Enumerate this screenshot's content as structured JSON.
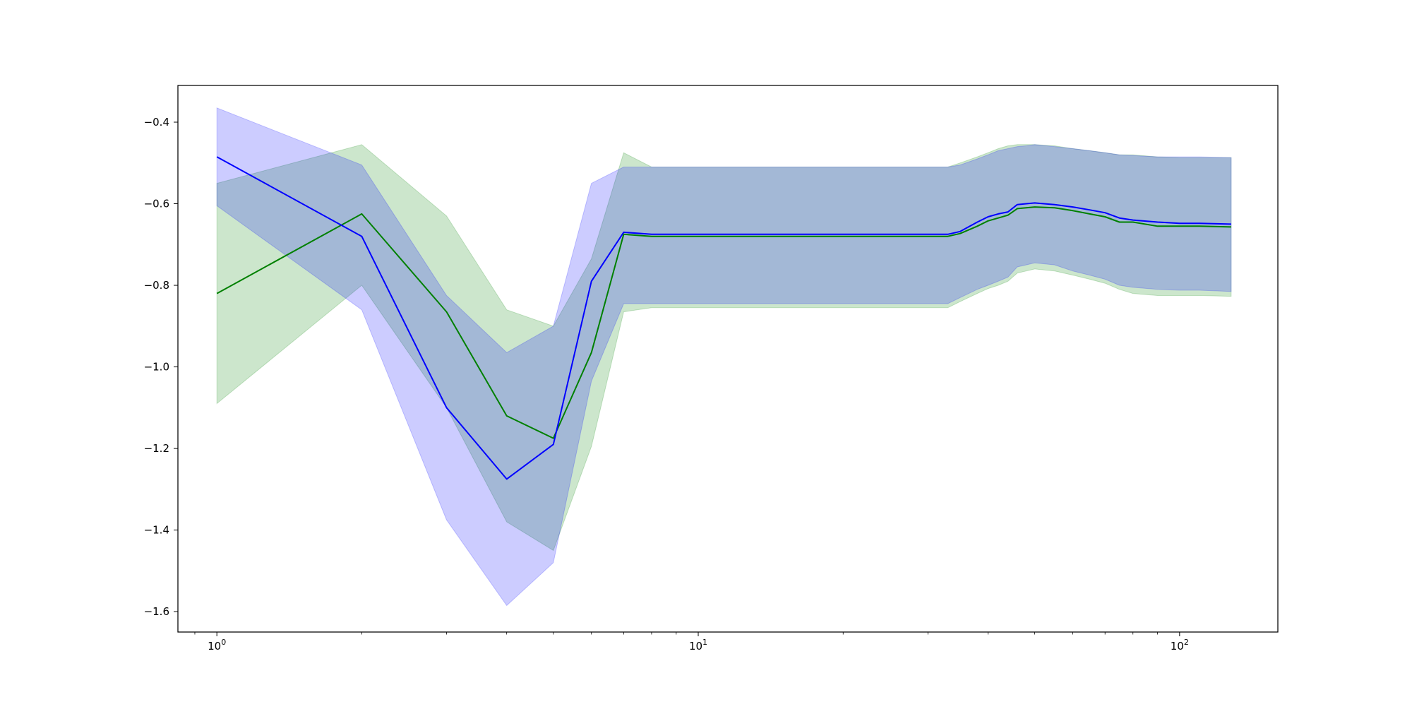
{
  "chart_data": {
    "type": "line",
    "x_scale": "log",
    "xlim": [
      0.83,
      160
    ],
    "ylim": [
      -1.65,
      -0.31
    ],
    "grid": false,
    "legend": "none",
    "title": "",
    "xlabel": "",
    "ylabel": "",
    "x_ticks": [
      {
        "value": 1,
        "label": "10",
        "exp": "0"
      },
      {
        "value": 10,
        "label": "10",
        "exp": "1"
      },
      {
        "value": 100,
        "label": "10",
        "exp": "2"
      }
    ],
    "y_ticks": [
      {
        "value": -0.4,
        "label": "−0.4"
      },
      {
        "value": -0.6,
        "label": "−0.6"
      },
      {
        "value": -0.8,
        "label": "−0.8"
      },
      {
        "value": -1.0,
        "label": "−1.0"
      },
      {
        "value": -1.2,
        "label": "−1.2"
      },
      {
        "value": -1.4,
        "label": "−1.4"
      },
      {
        "value": -1.6,
        "label": "−1.6"
      }
    ],
    "series": [
      {
        "color": "#008000",
        "band_color": "#008000",
        "band_opacity": 0.2,
        "x": [
          1,
          2,
          3,
          4,
          5,
          6,
          7,
          8,
          20,
          33,
          35,
          38,
          40,
          42,
          44,
          46,
          48,
          50,
          55,
          60,
          65,
          70,
          75,
          80,
          90,
          100,
          110,
          128
        ],
        "mean": [
          -0.82,
          -0.625,
          -0.865,
          -1.12,
          -1.175,
          -0.965,
          -0.675,
          -0.68,
          -0.68,
          -0.68,
          -0.673,
          -0.655,
          -0.642,
          -0.635,
          -0.628,
          -0.612,
          -0.61,
          -0.608,
          -0.61,
          -0.617,
          -0.625,
          -0.632,
          -0.645,
          -0.645,
          -0.655,
          -0.655,
          -0.655,
          -0.657
        ],
        "upper": [
          -0.55,
          -0.455,
          -0.63,
          -0.86,
          -0.9,
          -0.735,
          -0.475,
          -0.51,
          -0.51,
          -0.51,
          -0.5,
          -0.485,
          -0.475,
          -0.465,
          -0.458,
          -0.455,
          -0.455,
          -0.455,
          -0.458,
          -0.465,
          -0.47,
          -0.475,
          -0.48,
          -0.48,
          -0.485,
          -0.487,
          -0.487,
          -0.487
        ],
        "lower": [
          -1.09,
          -0.8,
          -1.1,
          -1.38,
          -1.45,
          -1.195,
          -0.865,
          -0.855,
          -0.855,
          -0.855,
          -0.84,
          -0.82,
          -0.808,
          -0.8,
          -0.79,
          -0.77,
          -0.765,
          -0.76,
          -0.765,
          -0.775,
          -0.785,
          -0.795,
          -0.81,
          -0.82,
          -0.825,
          -0.825,
          -0.825,
          -0.827
        ]
      },
      {
        "color": "#0000ff",
        "band_color": "#0000ff",
        "band_opacity": 0.2,
        "x": [
          1,
          2,
          3,
          4,
          5,
          6,
          7,
          8,
          20,
          33,
          35,
          38,
          40,
          42,
          44,
          46,
          48,
          50,
          55,
          60,
          65,
          70,
          75,
          80,
          90,
          100,
          110,
          128
        ],
        "mean": [
          -0.485,
          -0.68,
          -1.1,
          -1.275,
          -1.19,
          -0.79,
          -0.67,
          -0.675,
          -0.675,
          -0.675,
          -0.668,
          -0.645,
          -0.632,
          -0.625,
          -0.62,
          -0.602,
          -0.6,
          -0.598,
          -0.602,
          -0.608,
          -0.615,
          -0.622,
          -0.635,
          -0.64,
          -0.645,
          -0.648,
          -0.648,
          -0.65
        ],
        "upper": [
          -0.365,
          -0.505,
          -0.825,
          -0.965,
          -0.9,
          -0.55,
          -0.51,
          -0.51,
          -0.51,
          -0.51,
          -0.505,
          -0.49,
          -0.48,
          -0.47,
          -0.465,
          -0.46,
          -0.458,
          -0.455,
          -0.46,
          -0.465,
          -0.47,
          -0.475,
          -0.48,
          -0.482,
          -0.485,
          -0.485,
          -0.485,
          -0.487
        ],
        "lower": [
          -0.605,
          -0.86,
          -1.375,
          -1.585,
          -1.48,
          -1.035,
          -0.845,
          -0.845,
          -0.845,
          -0.845,
          -0.83,
          -0.81,
          -0.8,
          -0.79,
          -0.78,
          -0.755,
          -0.75,
          -0.745,
          -0.75,
          -0.765,
          -0.775,
          -0.785,
          -0.8,
          -0.805,
          -0.81,
          -0.812,
          -0.812,
          -0.815
        ]
      }
    ]
  }
}
